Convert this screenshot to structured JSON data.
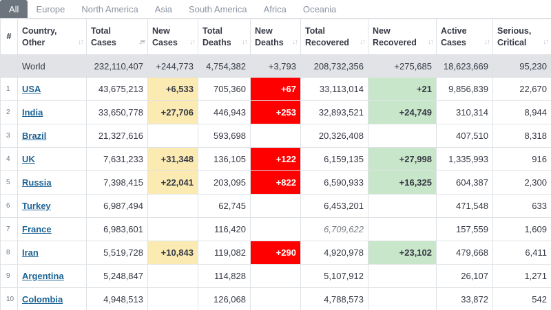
{
  "tabs": [
    "All",
    "Europe",
    "North America",
    "Asia",
    "South America",
    "Africa",
    "Oceania"
  ],
  "active_tab": "All",
  "columns": [
    {
      "line1": "#",
      "line2": ""
    },
    {
      "line1": "Country,",
      "line2": "Other"
    },
    {
      "line1": "Total",
      "line2": "Cases"
    },
    {
      "line1": "New",
      "line2": "Cases"
    },
    {
      "line1": "Total",
      "line2": "Deaths"
    },
    {
      "line1": "New",
      "line2": "Deaths"
    },
    {
      "line1": "Total",
      "line2": "Recovered"
    },
    {
      "line1": "New",
      "line2": "Recovered"
    },
    {
      "line1": "Active",
      "line2": "Cases"
    },
    {
      "line1": "Serious,",
      "line2": "Critical"
    }
  ],
  "world": {
    "country": "World",
    "total_cases": "232,110,407",
    "new_cases": "+244,773",
    "total_deaths": "4,754,382",
    "new_deaths": "+3,793",
    "total_recovered": "208,732,356",
    "new_recovered": "+275,685",
    "active_cases": "18,623,669",
    "serious_critical": "95,230"
  },
  "rows": [
    {
      "rank": "1",
      "country": "USA",
      "total_cases": "43,675,213",
      "new_cases": "+6,533",
      "total_deaths": "705,360",
      "new_deaths": "+67",
      "total_recovered": "33,113,014",
      "new_recovered": "+21",
      "active_cases": "9,856,839",
      "serious_critical": "22,670",
      "recovered_estimated": false
    },
    {
      "rank": "2",
      "country": "India",
      "total_cases": "33,650,778",
      "new_cases": "+27,706",
      "total_deaths": "446,943",
      "new_deaths": "+253",
      "total_recovered": "32,893,521",
      "new_recovered": "+24,749",
      "active_cases": "310,314",
      "serious_critical": "8,944",
      "recovered_estimated": false
    },
    {
      "rank": "3",
      "country": "Brazil",
      "total_cases": "21,327,616",
      "new_cases": "",
      "total_deaths": "593,698",
      "new_deaths": "",
      "total_recovered": "20,326,408",
      "new_recovered": "",
      "active_cases": "407,510",
      "serious_critical": "8,318",
      "recovered_estimated": false
    },
    {
      "rank": "4",
      "country": "UK",
      "total_cases": "7,631,233",
      "new_cases": "+31,348",
      "total_deaths": "136,105",
      "new_deaths": "+122",
      "total_recovered": "6,159,135",
      "new_recovered": "+27,998",
      "active_cases": "1,335,993",
      "serious_critical": "916",
      "recovered_estimated": false
    },
    {
      "rank": "5",
      "country": "Russia",
      "total_cases": "7,398,415",
      "new_cases": "+22,041",
      "total_deaths": "203,095",
      "new_deaths": "+822",
      "total_recovered": "6,590,933",
      "new_recovered": "+16,325",
      "active_cases": "604,387",
      "serious_critical": "2,300",
      "recovered_estimated": false
    },
    {
      "rank": "6",
      "country": "Turkey",
      "total_cases": "6,987,494",
      "new_cases": "",
      "total_deaths": "62,745",
      "new_deaths": "",
      "total_recovered": "6,453,201",
      "new_recovered": "",
      "active_cases": "471,548",
      "serious_critical": "633",
      "recovered_estimated": false
    },
    {
      "rank": "7",
      "country": "France",
      "total_cases": "6,983,601",
      "new_cases": "",
      "total_deaths": "116,420",
      "new_deaths": "",
      "total_recovered": "6,709,622",
      "new_recovered": "",
      "active_cases": "157,559",
      "serious_critical": "1,609",
      "recovered_estimated": true
    },
    {
      "rank": "8",
      "country": "Iran",
      "total_cases": "5,519,728",
      "new_cases": "+10,843",
      "total_deaths": "119,082",
      "new_deaths": "+290",
      "total_recovered": "4,920,978",
      "new_recovered": "+23,102",
      "active_cases": "479,668",
      "serious_critical": "6,411",
      "recovered_estimated": false
    },
    {
      "rank": "9",
      "country": "Argentina",
      "total_cases": "5,248,847",
      "new_cases": "",
      "total_deaths": "114,828",
      "new_deaths": "",
      "total_recovered": "5,107,912",
      "new_recovered": "",
      "active_cases": "26,107",
      "serious_critical": "1,271",
      "recovered_estimated": false
    },
    {
      "rank": "10",
      "country": "Colombia",
      "total_cases": "4,948,513",
      "new_cases": "",
      "total_deaths": "126,068",
      "new_deaths": "",
      "total_recovered": "4,788,573",
      "new_recovered": "",
      "active_cases": "33,872",
      "serious_critical": "542",
      "recovered_estimated": false
    }
  ],
  "colors": {
    "new_cases_highlight": "#fbebb2",
    "new_deaths_highlight": "#ff0000",
    "new_recovered_highlight": "#c8e6c9",
    "world_row": "#e1e3e7",
    "country_link": "#1d6496",
    "active_tab": "#6c757d"
  },
  "icons": {
    "sort": "sort-arrows-icon",
    "sort_active": "sort-descending-icon"
  }
}
